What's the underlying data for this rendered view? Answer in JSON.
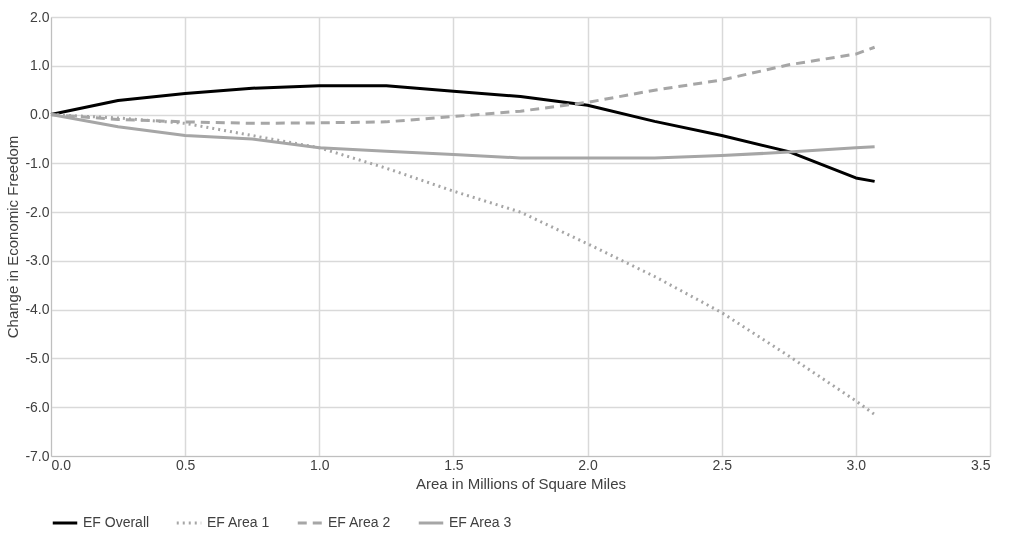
{
  "chart_data": {
    "type": "line",
    "xlabel": "Area in Millions of Square Miles",
    "ylabel": "Change in Economic Freedom",
    "x": [
      0,
      0.25,
      0.5,
      0.75,
      1.0,
      1.25,
      1.5,
      1.75,
      2.0,
      2.25,
      2.5,
      2.75,
      3.0,
      3.07
    ],
    "series": [
      {
        "name": "EF Overall",
        "color": "#000000",
        "line_style": "solid",
        "values": [
          0,
          0.29,
          0.43,
          0.54,
          0.59,
          0.59,
          0.48,
          0.37,
          0.19,
          -0.14,
          -0.43,
          -0.76,
          -1.3,
          -1.37
        ]
      },
      {
        "name": "EF Area 1",
        "color": "#a6a6a6",
        "line_style": "dotted",
        "values": [
          0,
          -0.07,
          -0.18,
          -0.43,
          -0.68,
          -1.1,
          -1.57,
          -2.0,
          -2.65,
          -3.32,
          -4.06,
          -4.95,
          -5.87,
          -6.15
        ]
      },
      {
        "name": "EF Area 2",
        "color": "#a6a6a6",
        "line_style": "dashed",
        "values": [
          0,
          -0.1,
          -0.15,
          -0.18,
          -0.17,
          -0.15,
          -0.04,
          0.07,
          0.25,
          0.5,
          0.71,
          1.02,
          1.24,
          1.38
        ]
      },
      {
        "name": "EF Area 3",
        "color": "#a6a6a6",
        "line_style": "solid",
        "values": [
          0,
          -0.25,
          -0.43,
          -0.5,
          -0.68,
          -0.75,
          -0.82,
          -0.89,
          -0.89,
          -0.89,
          -0.84,
          -0.77,
          -0.68,
          -0.66
        ]
      }
    ],
    "xlim": [
      0,
      3.5
    ],
    "xticks": [
      {
        "value": 0,
        "label": "0.0"
      },
      {
        "value": 0.5,
        "label": "0.5"
      },
      {
        "value": 1,
        "label": "1.0"
      },
      {
        "value": 1.5,
        "label": "1.5"
      },
      {
        "value": 2,
        "label": "2.0"
      },
      {
        "value": 2.5,
        "label": "2.5"
      },
      {
        "value": 3,
        "label": "3.0"
      },
      {
        "value": 3.5,
        "label": "3.5"
      }
    ],
    "ylim": [
      -7,
      2
    ],
    "yticks": [
      {
        "value": -7,
        "label": "-7.0"
      },
      {
        "value": -6,
        "label": "-6.0"
      },
      {
        "value": -5,
        "label": "-5.0"
      },
      {
        "value": -4,
        "label": "-4.0"
      },
      {
        "value": -3,
        "label": "-3.0"
      },
      {
        "value": -2,
        "label": "-2.0"
      },
      {
        "value": -1,
        "label": "-1.0"
      },
      {
        "value": 0,
        "label": "0.0"
      },
      {
        "value": 1,
        "label": "1.0"
      },
      {
        "value": 2,
        "label": "2.0"
      }
    ],
    "grid": true,
    "legend": "bottom",
    "marker": "none"
  }
}
